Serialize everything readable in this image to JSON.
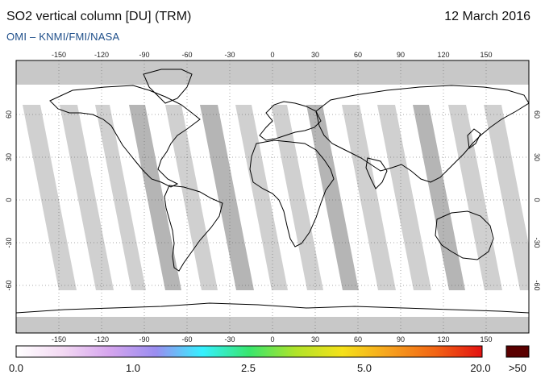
{
  "header": {
    "title": "SO2 vertical column [DU] (TRM)",
    "date": "12 March 2016",
    "credit": "OMI  –  KNMI/FMI/NASA"
  },
  "map": {
    "lon_ticks": [
      "-150",
      "-120",
      "-90",
      "-60",
      "-30",
      "0",
      "30",
      "60",
      "90",
      "120",
      "150"
    ],
    "lat_ticks": [
      "60",
      "30",
      "0",
      "-30",
      "-60"
    ],
    "colors": {
      "frame": "#000000",
      "no_data": "#c8c8c8",
      "orbit_gap": "#a8a8a8",
      "coast": "#000000"
    }
  },
  "colorbar": {
    "labels": [
      "0.0",
      "1.0",
      "2.5",
      "5.0",
      "20.0",
      ">50"
    ],
    "colors": [
      "#ffffff",
      "#f3d9f3",
      "#d6a5ee",
      "#9a8df0",
      "#35f0ff",
      "#38e66e",
      "#b0e32a",
      "#f5e11a",
      "#f6a21e",
      "#f26414",
      "#e31212"
    ],
    "overflow_color": "#5a0000"
  }
}
